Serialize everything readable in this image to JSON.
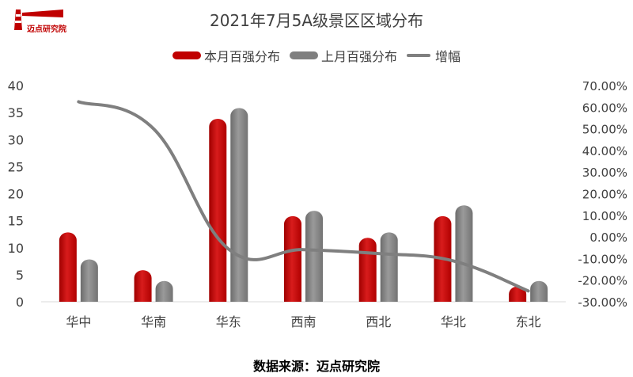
{
  "logo": {
    "text": "迈点研究院"
  },
  "chart_data": {
    "type": "bar",
    "title": "2021年7月5A级景区区域分布",
    "categories": [
      "华中",
      "华南",
      "华东",
      "西南",
      "西北",
      "华北",
      "东北"
    ],
    "series": [
      {
        "name": "本月百强分布",
        "type": "bar",
        "axis": "left",
        "color": "#c00000",
        "values": [
          13,
          6,
          34,
          16,
          12,
          16,
          3
        ]
      },
      {
        "name": "上月百强分布",
        "type": "bar",
        "axis": "left",
        "color": "#7f7f7f",
        "values": [
          8,
          4,
          36,
          17,
          13,
          18,
          4
        ]
      },
      {
        "name": "增幅",
        "type": "line",
        "axis": "right",
        "color": "#7f7f7f",
        "values": [
          62.5,
          50.0,
          -5.6,
          -5.9,
          -7.7,
          -11.1,
          -25.0
        ]
      }
    ],
    "y_left": {
      "min": 0,
      "max": 40,
      "step": 5,
      "ticks": [
        "0",
        "5",
        "10",
        "15",
        "20",
        "25",
        "30",
        "35",
        "40"
      ]
    },
    "y_right": {
      "min": -30,
      "max": 70,
      "step": 10,
      "ticks": [
        "-30.00%",
        "-20.00%",
        "-10.00%",
        "0.00%",
        "10.00%",
        "20.00%",
        "30.00%",
        "40.00%",
        "50.00%",
        "60.00%",
        "70.00%"
      ]
    },
    "grid": false,
    "legend_position": "top"
  },
  "source_text": "数据来源：迈点研究院"
}
